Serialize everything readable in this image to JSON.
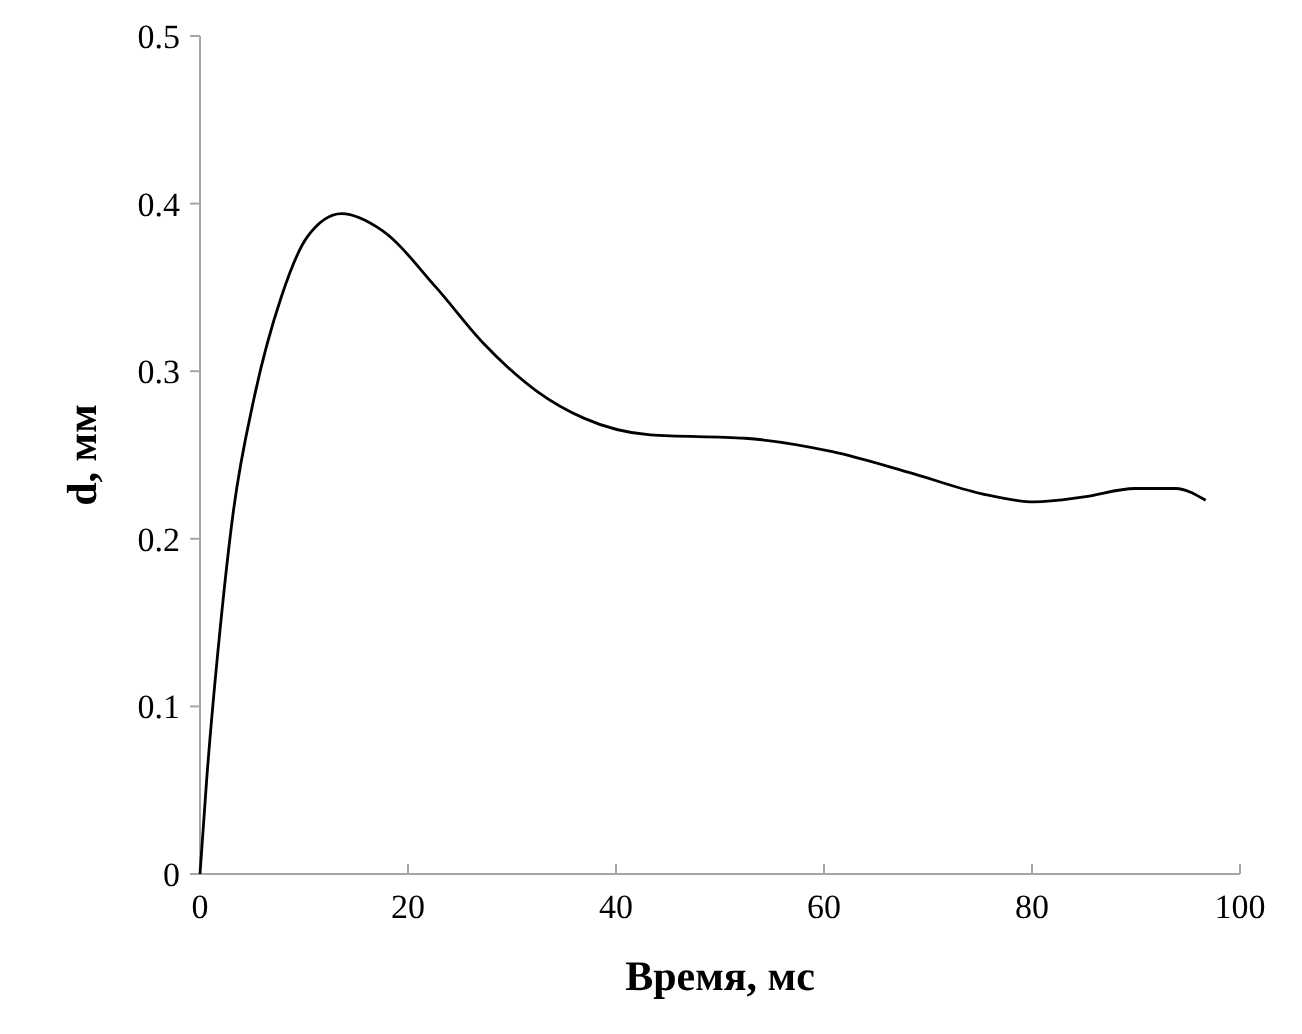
{
  "chart_data": {
    "type": "line",
    "xlabel": "Время, мс",
    "ylabel": "d, мм",
    "xlim": [
      0,
      100
    ],
    "ylim": [
      0,
      0.5
    ],
    "xticks": [
      0,
      20,
      40,
      60,
      80,
      100
    ],
    "yticks": [
      0,
      0.1,
      0.2,
      0.3,
      0.4,
      0.5
    ],
    "grid": false,
    "marker": "none",
    "line_style": "solid",
    "series": [
      {
        "color": "#000000",
        "x": [
          0,
          0.65,
          1.9,
          3.2,
          5.2,
          7.8,
          10.3,
          13.6,
          17.5,
          22.7,
          27.2,
          32.4,
          36.9,
          43.3,
          52.4,
          60.8,
          68.5,
          75.1,
          80.2,
          85,
          89.9,
          93.8,
          96.7
        ],
        "values": [
          0,
          0.057,
          0.144,
          0.216,
          0.284,
          0.344,
          0.38,
          0.394,
          0.384,
          0.35,
          0.317,
          0.288,
          0.272,
          0.262,
          0.26,
          0.252,
          0.239,
          0.227,
          0.222,
          0.225,
          0.23,
          0.23,
          0.223
        ]
      }
    ]
  }
}
